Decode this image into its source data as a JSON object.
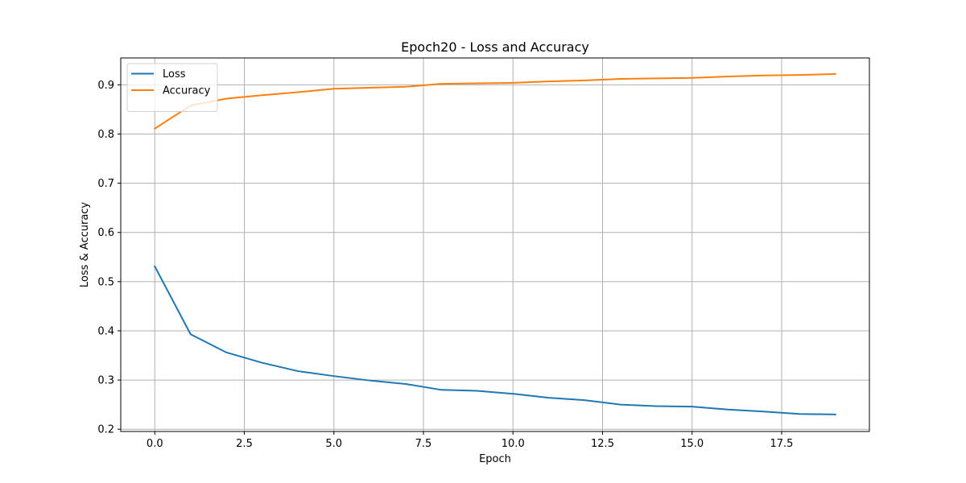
{
  "chart_data": {
    "type": "line",
    "title": "Epoch20 - Loss and Accuracy",
    "xlabel": "Epoch",
    "ylabel": "Loss & Accuracy",
    "x": [
      0,
      1,
      2,
      3,
      4,
      5,
      6,
      7,
      8,
      9,
      10,
      11,
      12,
      13,
      14,
      15,
      16,
      17,
      18,
      19
    ],
    "series": [
      {
        "name": "Loss",
        "color": "#1f77b4",
        "values": [
          0.531,
          0.393,
          0.356,
          0.335,
          0.318,
          0.308,
          0.299,
          0.292,
          0.28,
          0.278,
          0.272,
          0.264,
          0.259,
          0.25,
          0.247,
          0.246,
          0.24,
          0.236,
          0.231,
          0.23
        ]
      },
      {
        "name": "Accuracy",
        "color": "#ff7f0e",
        "values": [
          0.811,
          0.858,
          0.872,
          0.879,
          0.885,
          0.892,
          0.894,
          0.896,
          0.902,
          0.903,
          0.904,
          0.907,
          0.909,
          0.912,
          0.913,
          0.914,
          0.917,
          0.919,
          0.92,
          0.922
        ]
      }
    ],
    "xlim": [
      -0.95,
      19.95
    ],
    "ylim": [
      0.1954,
      0.9546
    ],
    "xticks": [
      0.0,
      2.5,
      5.0,
      7.5,
      10.0,
      12.5,
      15.0,
      17.5
    ],
    "xtick_labels": [
      "0.0",
      "2.5",
      "5.0",
      "7.5",
      "10.0",
      "12.5",
      "15.0",
      "17.5"
    ],
    "yticks": [
      0.2,
      0.3,
      0.4,
      0.5,
      0.6,
      0.7,
      0.8,
      0.9
    ],
    "ytick_labels": [
      "0.2",
      "0.3",
      "0.4",
      "0.5",
      "0.6",
      "0.7",
      "0.8",
      "0.9"
    ],
    "grid": true,
    "legend_position": "top-left"
  }
}
